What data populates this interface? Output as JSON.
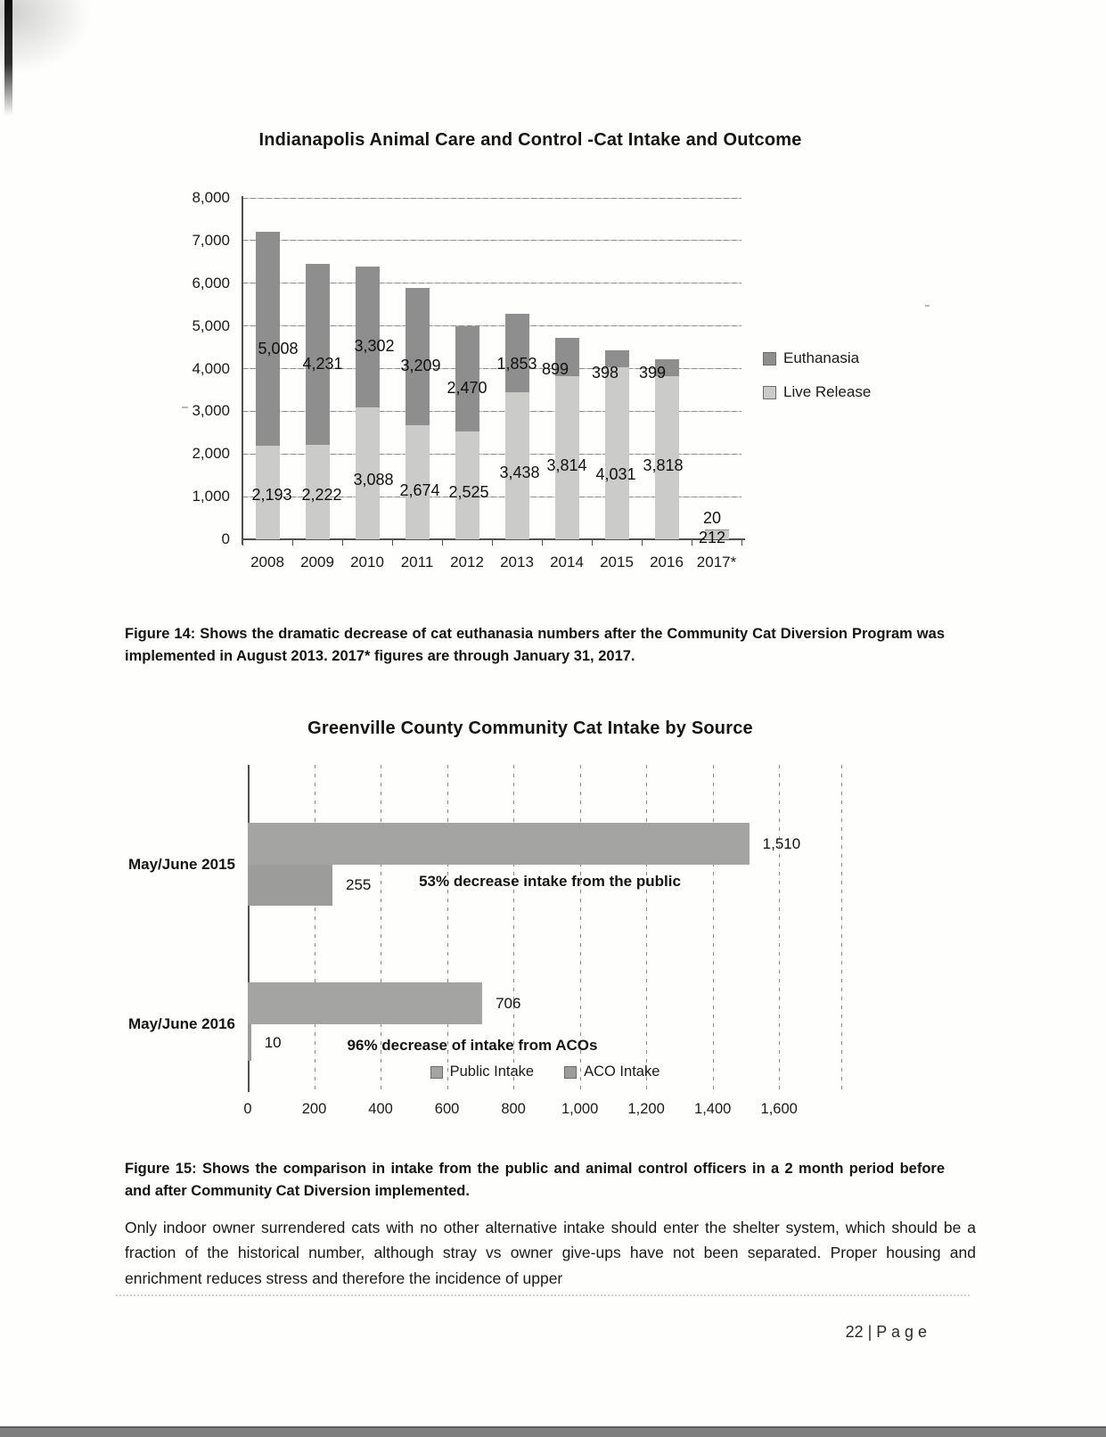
{
  "figure14": {
    "caption": "Figure 14: Shows the dramatic decrease of cat euthanasia numbers after the Community Cat Diversion Program was implemented in August 2013.  2017* figures are through January 31, 2017."
  },
  "figure15": {
    "caption": "Figure 15: Shows the comparison in intake from the public and animal control officers in a 2 month period before and after Community Cat Diversion implemented."
  },
  "body_text": "Only indoor owner surrendered cats with no other alternative intake should enter the shelter system, which should be a fraction of the historical number, although stray vs owner give-ups have not been separated.  Proper housing and enrichment reduces stress and therefore the incidence of upper",
  "footer": "22 | P a g e",
  "chart_data": [
    {
      "type": "bar",
      "orientation": "vertical",
      "stacked": true,
      "title": "Indianapolis Animal Care and Control -Cat Intake and Outcome",
      "categories": [
        "2008",
        "2009",
        "2010",
        "2011",
        "2012",
        "2013",
        "2014",
        "2015",
        "2016",
        "2017*"
      ],
      "series": [
        {
          "name": "Euthanasia",
          "color": "#8e8e8e",
          "values": [
            5008,
            4231,
            3302,
            3209,
            2470,
            1853,
            899,
            398,
            399,
            20
          ],
          "labels": [
            "5,008",
            "4,231",
            "3,302",
            "3,209",
            "2,470",
            "1,853",
            "899",
            "398",
            "399",
            "20"
          ]
        },
        {
          "name": "Live Release",
          "color": "#cbcbc9",
          "values": [
            2193,
            2222,
            3088,
            2674,
            2525,
            3438,
            3814,
            4031,
            3818,
            212
          ],
          "labels": [
            "2,193",
            "2,222",
            "3,088",
            "2,674",
            "2,525",
            "3,438",
            "3,814",
            "4,031",
            "3,818",
            "212"
          ]
        }
      ],
      "ylim": [
        0,
        8000
      ],
      "ytick_labels": [
        "0",
        "1,000",
        "2,000",
        "3,000",
        "4,000",
        "5,000",
        "6,000",
        "7,000",
        "8,000"
      ],
      "grid": "horizontal",
      "legend_position": "right"
    },
    {
      "type": "bar",
      "orientation": "horizontal",
      "stacked": false,
      "title": "Greenville County Community Cat Intake by Source",
      "categories": [
        "May/June 2015",
        "May/June 2016"
      ],
      "series": [
        {
          "name": "Public Intake",
          "color": "#a4a4a2",
          "values": [
            1510,
            706
          ],
          "labels": [
            "1,510",
            "706"
          ]
        },
        {
          "name": "ACO Intake",
          "color": "#9c9c9a",
          "values": [
            255,
            10
          ],
          "labels": [
            "255",
            "10"
          ]
        }
      ],
      "xlim": [
        0,
        1600
      ],
      "xtick_labels": [
        "0",
        "200",
        "400",
        "600",
        "800",
        "1,000",
        "1,200",
        "1,400",
        "1,600"
      ],
      "annotations": [
        "53% decrease intake from the public",
        "96% decrease of intake from ACOs"
      ],
      "grid": "vertical",
      "legend_position": "bottom"
    }
  ]
}
